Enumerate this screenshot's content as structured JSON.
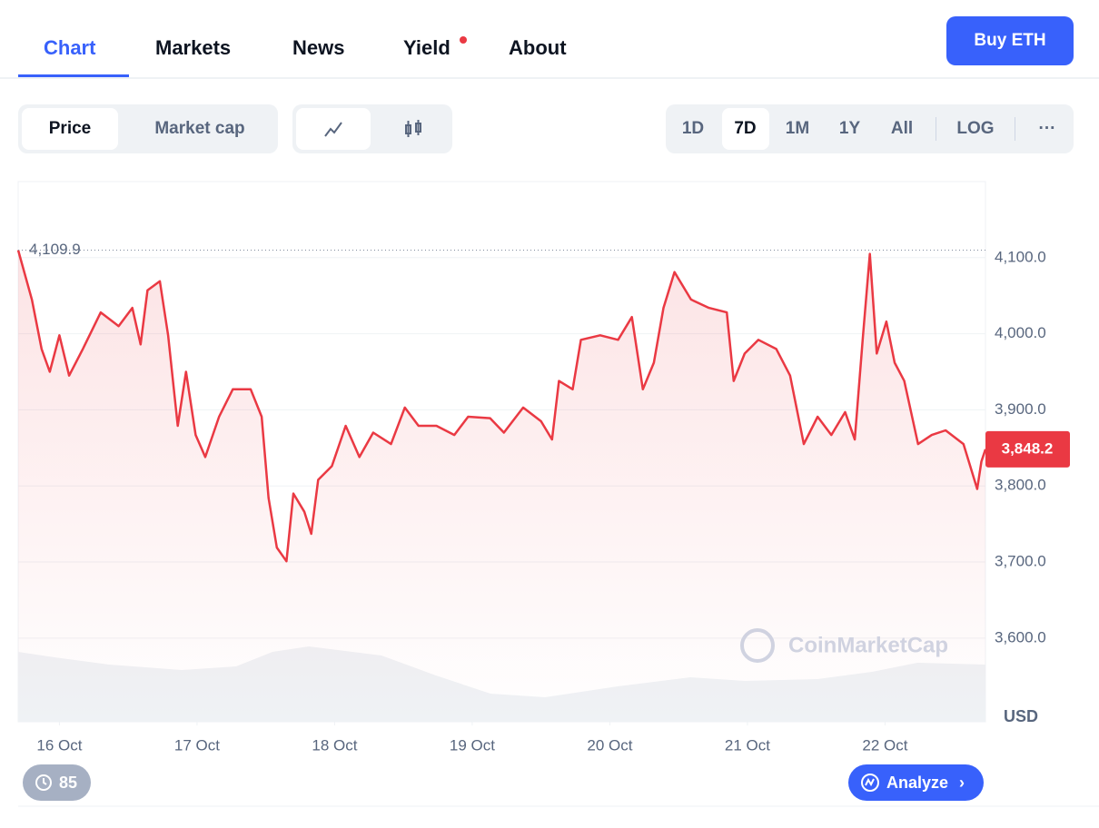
{
  "tabs": [
    "Chart",
    "Markets",
    "News",
    "Yield",
    "About"
  ],
  "active_tab": 0,
  "buy_button": "Buy ETH",
  "metric_toggle": [
    "Price",
    "Market cap"
  ],
  "ranges": [
    "1D",
    "7D",
    "1M",
    "1Y",
    "All"
  ],
  "active_range": 1,
  "log_button": "LOG",
  "more_button": "···",
  "watermark": "CoinMarketCap",
  "history_badge": 85,
  "analyze_button": "Analyze",
  "chart_data": {
    "type": "line",
    "color": "#ea3943",
    "grid": true,
    "y_unit": "USD",
    "high_label": "4,109.9",
    "last_label": "3,848.2",
    "xlim": [
      15.7,
      22.73
    ],
    "ylim": [
      3490,
      4200
    ],
    "xticks": [
      {
        "value": 16,
        "label": "16 Oct"
      },
      {
        "value": 17,
        "label": "17 Oct"
      },
      {
        "value": 18,
        "label": "18 Oct"
      },
      {
        "value": 19,
        "label": "19 Oct"
      },
      {
        "value": 20,
        "label": "20 Oct"
      },
      {
        "value": 21,
        "label": "21 Oct"
      },
      {
        "value": 22,
        "label": "22 Oct"
      }
    ],
    "yticks": [
      {
        "value": 3600,
        "label": "3,600.0"
      },
      {
        "value": 3700,
        "label": "3,700.0"
      },
      {
        "value": 3800,
        "label": "3,800.0"
      },
      {
        "value": 3900,
        "label": "3,900.0"
      },
      {
        "value": 4000,
        "label": "4,000.0"
      },
      {
        "value": 4100,
        "label": "4,100.0"
      }
    ],
    "x": [
      15.7,
      15.8,
      15.87,
      15.93,
      16.0,
      16.07,
      16.17,
      16.3,
      16.43,
      16.53,
      16.59,
      16.64,
      16.73,
      16.79,
      16.86,
      16.92,
      16.99,
      17.06,
      17.16,
      17.26,
      17.39,
      17.47,
      17.52,
      17.58,
      17.65,
      17.7,
      17.78,
      17.83,
      17.88,
      17.98,
      18.08,
      18.18,
      18.28,
      18.41,
      18.51,
      18.61,
      18.74,
      18.87,
      18.97,
      19.13,
      19.23,
      19.37,
      19.5,
      19.58,
      19.63,
      19.73,
      19.79,
      19.93,
      20.06,
      20.16,
      20.24,
      20.32,
      20.39,
      20.47,
      20.59,
      20.72,
      20.85,
      20.9,
      20.98,
      21.08,
      21.21,
      21.31,
      21.41,
      21.51,
      21.61,
      21.71,
      21.78,
      21.84,
      21.89,
      21.94,
      22.01,
      22.07,
      22.14,
      22.24,
      22.34,
      22.44,
      22.57,
      22.67,
      22.7,
      22.73
    ],
    "values": [
      4109.9,
      4045,
      3980,
      3950,
      3998,
      3945,
      3980,
      4028,
      4010,
      4034,
      3986,
      4057,
      4069,
      3998,
      3879,
      3950,
      3867,
      3838,
      3891,
      3927,
      3927,
      3891,
      3784,
      3719,
      3701,
      3790,
      3766,
      3737,
      3808,
      3826,
      3879,
      3838,
      3870,
      3855,
      3903,
      3879,
      3879,
      3867,
      3891,
      3889,
      3870,
      3903,
      3885,
      3861,
      3938,
      3927,
      3992,
      3998,
      3992,
      4022,
      3927,
      3962,
      4034,
      4081,
      4045,
      4034,
      4028,
      3938,
      3974,
      3992,
      3980,
      3945,
      3855,
      3891,
      3867,
      3897,
      3861,
      3998,
      4105,
      3974,
      4016,
      3962,
      3938,
      3855,
      3867,
      3873,
      3855,
      3796,
      3832,
      3848.2
    ]
  }
}
